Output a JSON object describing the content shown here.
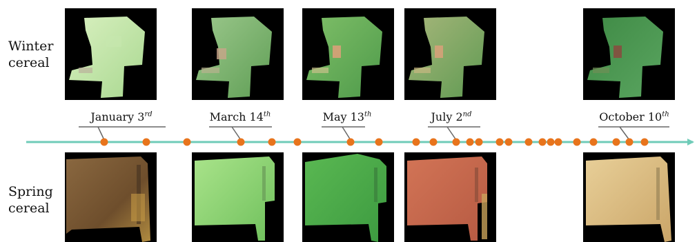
{
  "rows": {
    "winter": {
      "line1": "Winter",
      "line2": "cereal"
    },
    "spring": {
      "line1": "Spring",
      "line2": "cereal"
    }
  },
  "dates": [
    {
      "base": "January 3",
      "suffix": "rd"
    },
    {
      "base": "March 14",
      "suffix": "th"
    },
    {
      "base": "May 13",
      "suffix": "th"
    },
    {
      "base": "July 2",
      "suffix": "nd"
    },
    {
      "base": "October 10",
      "suffix": "th"
    }
  ],
  "colors": {
    "timeline": "#6fcbb8",
    "points": "#e8741c",
    "winter_tiles": [
      "#c2e6a4",
      "#7fb06a",
      "#67a653",
      "#86a96a",
      "#3f8a45"
    ],
    "spring_tiles": [
      "#7a5a32",
      "#9ad97a",
      "#4aa748",
      "#c86a4c",
      "#d8c088"
    ]
  },
  "timeline_points_count": 25
}
